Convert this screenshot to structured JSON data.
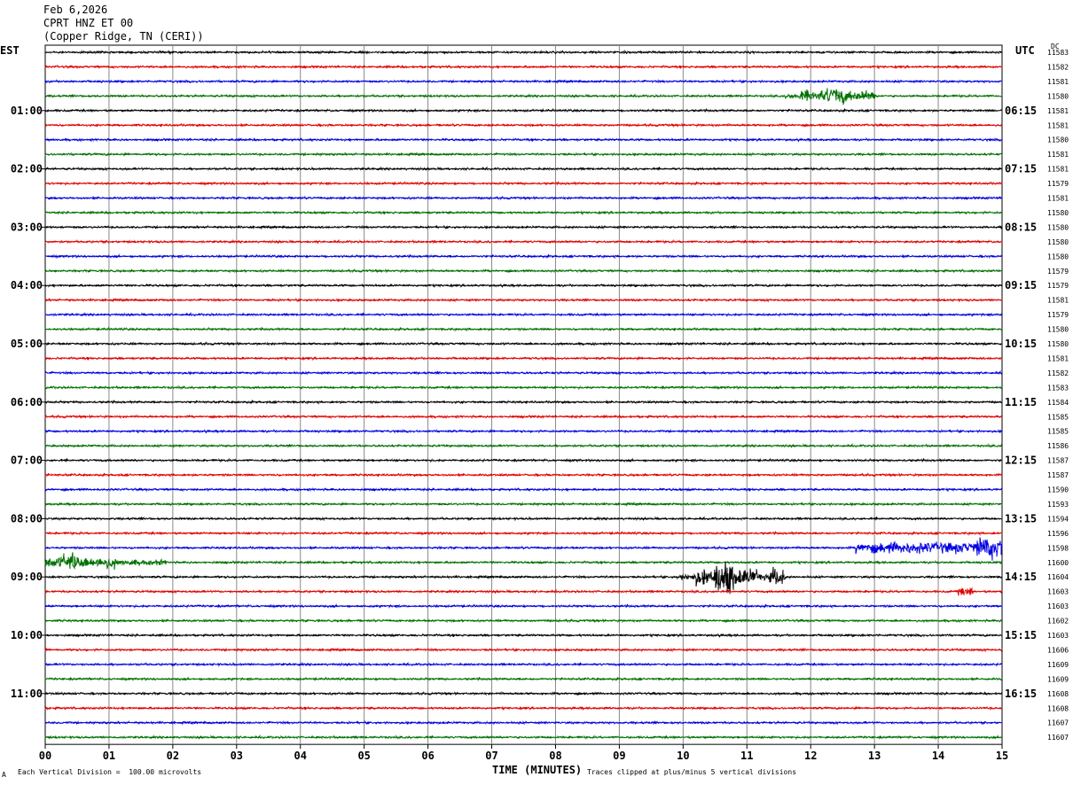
{
  "header": {
    "date": "Feb 6,2026",
    "station": "CPRT HNZ ET 00",
    "location": "(Copper Ridge, TN (CERI))"
  },
  "left_timezone": "EST",
  "right_timezone": "UTC",
  "dc_label": "DC",
  "footer": {
    "scale_note": "Each Vertical Division =  100.00 microvolts",
    "clip_note": "Traces clipped at plus/minus 5 vertical divisions",
    "corner_mark": "A"
  },
  "colors": {
    "black": "#000000",
    "red": "#e00000",
    "blue": "#0000e0",
    "green": "#007000",
    "grid": "#888888"
  },
  "chart_data": {
    "type": "line",
    "title": "CPRT HNZ ET 00",
    "xlabel": "TIME (MINUTES)",
    "ylabel": "",
    "xlim": [
      0,
      15
    ],
    "x_ticks": [
      "00",
      "01",
      "02",
      "03",
      "04",
      "05",
      "06",
      "07",
      "08",
      "09",
      "10",
      "11",
      "12",
      "13",
      "14",
      "15"
    ],
    "trace_colors_cycle": [
      "black",
      "red",
      "blue",
      "green"
    ],
    "left_hour_labels": [
      "01:00",
      "02:00",
      "03:00",
      "04:00",
      "05:00",
      "06:00",
      "07:00",
      "08:00",
      "09:00",
      "10:00",
      "11:00"
    ],
    "right_hour_labels": [
      "06:15",
      "07:15",
      "08:15",
      "09:15",
      "10:15",
      "11:15",
      "12:15",
      "13:15",
      "14:15",
      "15:15",
      "16:15"
    ],
    "dc_values": [
      "11583",
      "11582",
      "11581",
      "11580",
      "11581",
      "11581",
      "11580",
      "11581",
      "11581",
      "11579",
      "11581",
      "11580",
      "11580",
      "11580",
      "11580",
      "11579",
      "11579",
      "11581",
      "11579",
      "11580",
      "11580",
      "11581",
      "11582",
      "11583",
      "11584",
      "11585",
      "11585",
      "11586",
      "11587",
      "11587",
      "11590",
      "11593",
      "11594",
      "11596",
      "11598",
      "11600",
      "11604",
      "11603",
      "11603",
      "11602",
      "11603",
      "11606",
      "11609",
      "11609",
      "11608",
      "11608",
      "11607",
      "11607"
    ],
    "events": [
      {
        "row": 3,
        "start": 11.6,
        "end": 13.0,
        "peak": 12.4,
        "amplitude": "medium"
      },
      {
        "row": 34,
        "start": 12.7,
        "end": 15.0,
        "peak": 14.8,
        "amplitude": "sustained"
      },
      {
        "row": 35,
        "start": 0.0,
        "end": 1.9,
        "peak": 0.4,
        "amplitude": "medium"
      },
      {
        "row": 36,
        "start": 9.9,
        "end": 11.6,
        "peak": 10.65,
        "amplitude": "large"
      },
      {
        "row": 37,
        "start": 14.3,
        "end": 14.55,
        "peak": 14.45,
        "amplitude": "small"
      }
    ]
  }
}
